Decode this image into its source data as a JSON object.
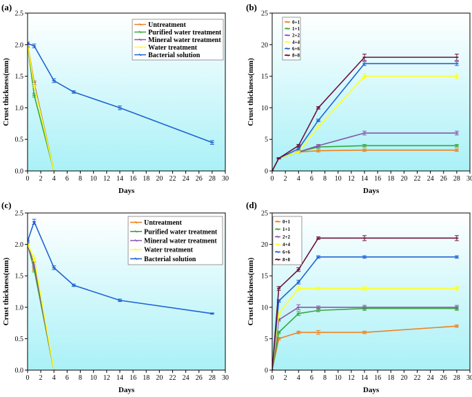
{
  "colors": {
    "plot_bg_top": "#ffffff",
    "plot_bg_bottom": "#a9f1f7",
    "Untreatment": "#f07f1a",
    "Purified water treatment": "#35a93a",
    "Mineral water treatment": "#8a55a8",
    "Water treatment": "#ffff1a",
    "Bacterial solution": "#1e63d4",
    "0+1": "#f07f1a",
    "1+1": "#35a93a",
    "2+2": "#8a55a8",
    "4+4": "#ffff1a",
    "6+6": "#1e63d4",
    "8+8": "#6e0f3c"
  },
  "chart_data": [
    {
      "id": "a",
      "panel_label": "(a)",
      "type": "line",
      "xlabel": "Days",
      "ylabel": "Crust thickness(mm)",
      "xlim": [
        0,
        30
      ],
      "ylim": [
        0,
        2.5
      ],
      "xticks": [
        "0",
        "2",
        "4",
        "6",
        "8",
        "10",
        "12",
        "14",
        "16",
        "18",
        "20",
        "22",
        "24",
        "26",
        "28",
        "30"
      ],
      "yticks": [
        "0.0",
        "0.5",
        "1.0",
        "1.5",
        "2.0",
        "2.5"
      ],
      "legend_position": "top-right",
      "series": [
        {
          "name": "Untreatment",
          "x": [
            0,
            1,
            4
          ],
          "y": [
            2.02,
            1.4,
            0.0
          ],
          "err": [
            0.02,
            0.03,
            0
          ]
        },
        {
          "name": "Purified water treatment",
          "x": [
            0,
            1,
            4
          ],
          "y": [
            2.0,
            1.2,
            0.0
          ],
          "err": [
            0.02,
            0.03,
            0
          ]
        },
        {
          "name": "Mineral water treatment",
          "x": [
            0,
            1,
            4
          ],
          "y": [
            1.98,
            1.38,
            0.0
          ],
          "err": [
            0.02,
            0.03,
            0
          ]
        },
        {
          "name": "Water treatment",
          "x": [
            0,
            1,
            4
          ],
          "y": [
            2.0,
            1.35,
            0.0
          ],
          "err": [
            0.02,
            0.03,
            0
          ]
        },
        {
          "name": "Bacterial solution",
          "x": [
            0,
            1,
            4,
            7,
            14,
            28
          ],
          "y": [
            2.02,
            1.98,
            1.43,
            1.25,
            1.0,
            0.45
          ],
          "err": [
            0.02,
            0.03,
            0.03,
            0.02,
            0.03,
            0.03
          ]
        }
      ]
    },
    {
      "id": "b",
      "panel_label": "(b)",
      "type": "line",
      "xlabel": "Days",
      "ylabel": "Crust thickness(mm)",
      "xlim": [
        0,
        30
      ],
      "ylim": [
        0,
        25
      ],
      "xticks": [
        "0",
        "2",
        "4",
        "6",
        "8",
        "10",
        "12",
        "14",
        "16",
        "18",
        "20",
        "22",
        "24",
        "26",
        "28",
        "30"
      ],
      "yticks": [
        "0",
        "5",
        "10",
        "15",
        "20",
        "25"
      ],
      "legend_position": "top-left",
      "series": [
        {
          "name": "0+1",
          "x": [
            0,
            1,
            4,
            7,
            14,
            28
          ],
          "y": [
            0,
            2,
            3.0,
            3.2,
            3.3,
            3.3
          ],
          "err": [
            0,
            0.1,
            0.2,
            0.2,
            0.2,
            0.2
          ]
        },
        {
          "name": "1+1",
          "x": [
            0,
            1,
            4,
            7,
            14,
            28
          ],
          "y": [
            0,
            2,
            3.0,
            3.8,
            4.0,
            4.0
          ],
          "err": [
            0,
            0.1,
            0.2,
            0.2,
            0.2,
            0.2
          ]
        },
        {
          "name": "2+2",
          "x": [
            0,
            1,
            4,
            7,
            14,
            28
          ],
          "y": [
            0,
            2,
            3.0,
            4.0,
            6.0,
            6.0
          ],
          "err": [
            0,
            0.1,
            0.2,
            0.2,
            0.3,
            0.3
          ]
        },
        {
          "name": "4+4",
          "x": [
            0,
            1,
            4,
            7,
            14,
            28
          ],
          "y": [
            0,
            2,
            3.0,
            7.0,
            15.0,
            15.0
          ],
          "err": [
            0,
            0.1,
            0.2,
            0.2,
            0.4,
            0.4
          ]
        },
        {
          "name": "6+6",
          "x": [
            0,
            1,
            4,
            7,
            14,
            28
          ],
          "y": [
            0,
            2,
            3.5,
            8.0,
            17.0,
            17.0
          ],
          "err": [
            0,
            0.1,
            0.2,
            0.2,
            0.3,
            0.3
          ]
        },
        {
          "name": "8+8",
          "x": [
            0,
            1,
            4,
            7,
            14,
            28
          ],
          "y": [
            0,
            2,
            4.0,
            10.0,
            18.0,
            18.0
          ],
          "err": [
            0,
            0.1,
            0.2,
            0.2,
            0.5,
            0.5
          ]
        }
      ]
    },
    {
      "id": "c",
      "panel_label": "(c)",
      "type": "line",
      "xlabel": "Days",
      "ylabel": "Crust thickness(mm)",
      "xlim": [
        0,
        30
      ],
      "ylim": [
        0,
        2.5
      ],
      "xticks": [
        "0",
        "2",
        "4",
        "6",
        "8",
        "10",
        "12",
        "14",
        "16",
        "18",
        "20",
        "22",
        "24",
        "26",
        "28",
        "30"
      ],
      "yticks": [
        "0.0",
        "0.5",
        "1.0",
        "1.5",
        "2.0",
        "2.5"
      ],
      "legend_position": "top-right",
      "series": [
        {
          "name": "Untreatment",
          "x": [
            0,
            1,
            4
          ],
          "y": [
            2.0,
            1.62,
            0.0
          ],
          "err": [
            0.02,
            0.04,
            0
          ]
        },
        {
          "name": "Purified water treatment",
          "x": [
            0,
            1,
            4
          ],
          "y": [
            2.0,
            1.6,
            0.0
          ],
          "err": [
            0.02,
            0.04,
            0
          ]
        },
        {
          "name": "Mineral water treatment",
          "x": [
            0,
            1,
            4
          ],
          "y": [
            2.0,
            1.68,
            0.0
          ],
          "err": [
            0.02,
            0.04,
            0
          ]
        },
        {
          "name": "Water treatment",
          "x": [
            0,
            1,
            4
          ],
          "y": [
            2.0,
            1.78,
            0.0
          ],
          "err": [
            0.02,
            0.04,
            0
          ]
        },
        {
          "name": "Bacterial solution",
          "x": [
            0,
            1,
            4,
            7,
            14,
            28
          ],
          "y": [
            2.05,
            2.36,
            1.63,
            1.35,
            1.11,
            0.9
          ],
          "err": [
            0.02,
            0.04,
            0.03,
            0.02,
            0.02,
            0.01
          ]
        }
      ]
    },
    {
      "id": "d",
      "panel_label": "(d)",
      "type": "line",
      "xlabel": "Days",
      "ylabel": "Crust thickness(mm)",
      "xlim": [
        0,
        30
      ],
      "ylim": [
        0,
        25
      ],
      "xticks": [
        "0",
        "2",
        "4",
        "6",
        "8",
        "10",
        "12",
        "14",
        "16",
        "18",
        "20",
        "22",
        "24",
        "26",
        "28",
        "30"
      ],
      "yticks": [
        "0",
        "5",
        "10",
        "15",
        "20",
        "25"
      ],
      "legend_position": "top-left",
      "series": [
        {
          "name": "0+1",
          "x": [
            0,
            1,
            4,
            7,
            14,
            28
          ],
          "y": [
            0,
            5,
            6,
            6,
            6,
            7
          ],
          "err": [
            0,
            0.2,
            0.2,
            0.3,
            0.2,
            0.2
          ]
        },
        {
          "name": "1+1",
          "x": [
            0,
            1,
            4,
            7,
            14,
            28
          ],
          "y": [
            0,
            6,
            9,
            9.5,
            9.8,
            9.8
          ],
          "err": [
            0,
            0.2,
            0.3,
            0.2,
            0.3,
            0.3
          ]
        },
        {
          "name": "2+2",
          "x": [
            0,
            1,
            4,
            7,
            14,
            28
          ],
          "y": [
            0,
            8,
            10,
            10,
            10,
            10
          ],
          "err": [
            0,
            0.2,
            0.4,
            0.2,
            0.3,
            0.3
          ]
        },
        {
          "name": "4+4",
          "x": [
            0,
            1,
            4,
            7,
            14,
            28
          ],
          "y": [
            0,
            9,
            13,
            13,
            13,
            13
          ],
          "err": [
            0,
            0.2,
            0.3,
            0.2,
            0.3,
            0.3
          ]
        },
        {
          "name": "6+6",
          "x": [
            0,
            1,
            4,
            7,
            14,
            28
          ],
          "y": [
            0,
            11,
            14,
            18,
            18,
            18
          ],
          "err": [
            0,
            0.2,
            0.3,
            0.2,
            0.2,
            0.2
          ]
        },
        {
          "name": "8+8",
          "x": [
            0,
            1,
            4,
            7,
            14,
            28
          ],
          "y": [
            0,
            13,
            16,
            21,
            21,
            21
          ],
          "err": [
            0,
            0.3,
            0.3,
            0.2,
            0.4,
            0.4
          ]
        }
      ]
    }
  ]
}
